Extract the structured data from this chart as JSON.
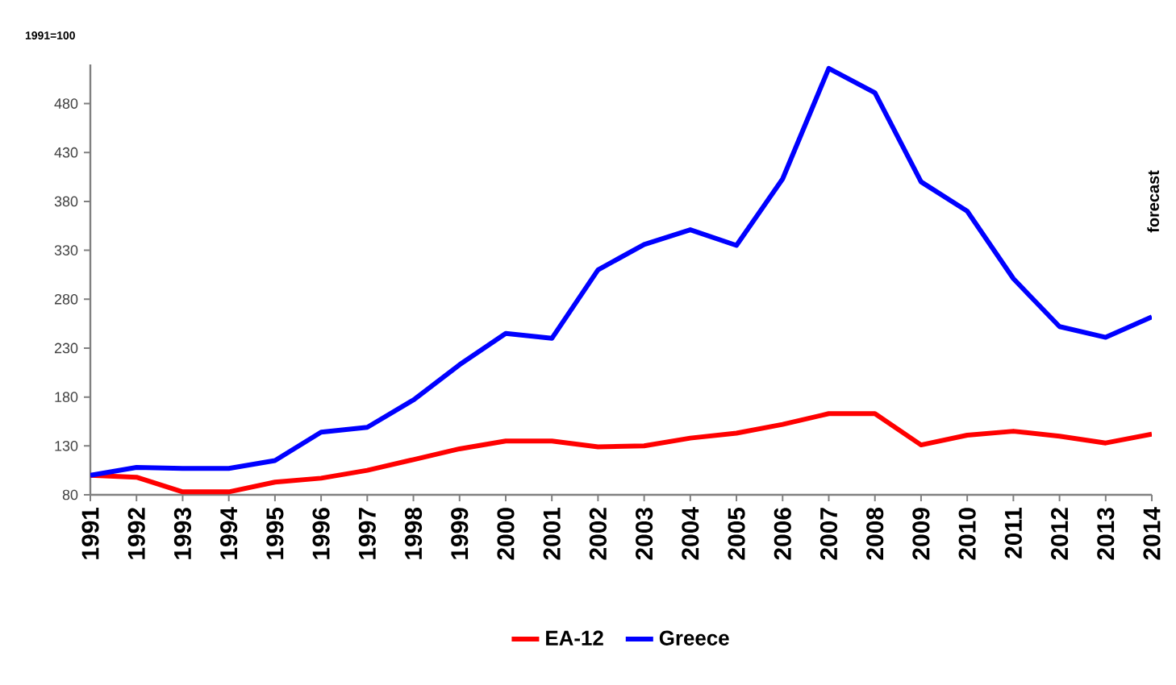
{
  "chart_data": {
    "type": "line",
    "ylabel": "1991=100",
    "categories": [
      "1991",
      "1992",
      "1993",
      "1994",
      "1995",
      "1996",
      "1997",
      "1998",
      "1999",
      "2000",
      "2001",
      "2002",
      "2003",
      "2004",
      "2005",
      "2006",
      "2007",
      "2008",
      "2009",
      "2010",
      "2011",
      "2012",
      "2013",
      "2014"
    ],
    "series": [
      {
        "name": "EA-12",
        "color": "#ff0000",
        "values": [
          100,
          98,
          83,
          83,
          93,
          97,
          105,
          116,
          127,
          135,
          135,
          129,
          130,
          138,
          143,
          152,
          163,
          163,
          131,
          141,
          145,
          140,
          133,
          142
        ]
      },
      {
        "name": "Greece",
        "color": "#0000ff",
        "values": [
          100,
          108,
          107,
          107,
          115,
          144,
          149,
          177,
          213,
          245,
          240,
          310,
          336,
          351,
          335,
          403,
          516,
          491,
          400,
          370,
          301,
          252,
          241,
          262
        ]
      }
    ],
    "ylim": [
      80,
      520
    ],
    "yticks": [
      80,
      130,
      180,
      230,
      280,
      330,
      380,
      430,
      480
    ],
    "grid": false,
    "legend": "bottom",
    "marker": "none",
    "line_style": "solid",
    "annotations": [
      "forecast"
    ]
  }
}
